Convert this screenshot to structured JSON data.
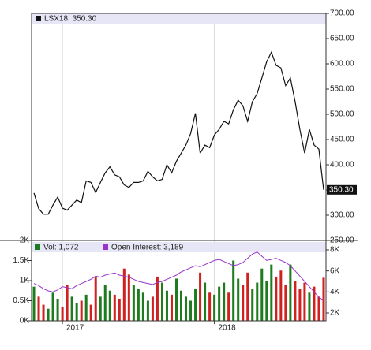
{
  "chart_data": [
    {
      "type": "line",
      "legend_label": "LSX18: 350.30",
      "last_label": "350.30",
      "categories": [
        null,
        null,
        null,
        null,
        null,
        null,
        "2017",
        null,
        null,
        null,
        null,
        null,
        null,
        null,
        null,
        null,
        null,
        null,
        null,
        null,
        null,
        null,
        null,
        null,
        null,
        null,
        null,
        null,
        null,
        null,
        null,
        null,
        null,
        null,
        null,
        null,
        null,
        null,
        "2018",
        null,
        null,
        null,
        null,
        null,
        null,
        null,
        null,
        null,
        null,
        null,
        null,
        null,
        null,
        null,
        null,
        null,
        null,
        null,
        null,
        null,
        null,
        null
      ],
      "series": [
        {
          "name": "LSX18",
          "color": "#111111",
          "values": [
            344,
            313,
            302,
            302,
            320,
            336,
            314,
            310,
            320,
            330,
            325,
            368,
            365,
            345,
            365,
            384,
            396,
            380,
            376,
            360,
            355,
            365,
            365,
            368,
            387,
            376,
            368,
            371,
            400,
            384,
            407,
            423,
            439,
            462,
            502,
            423,
            439,
            434,
            459,
            470,
            486,
            481,
            509,
            528,
            517,
            486,
            525,
            541,
            572,
            604,
            623,
            597,
            592,
            557,
            572,
            525,
            470,
            423,
            470,
            439,
            431,
            350.3
          ]
        }
      ],
      "ylim": [
        250,
        700
      ],
      "yticks": [
        {
          "value": 250,
          "label": "250.00"
        },
        {
          "value": 300,
          "label": "300.00"
        },
        {
          "value": 350,
          "label": "350.00"
        },
        {
          "value": 400,
          "label": "400.00"
        },
        {
          "value": 450,
          "label": "450.00"
        },
        {
          "value": 500,
          "label": "500.00"
        },
        {
          "value": 550,
          "label": "550.00"
        },
        {
          "value": 600,
          "label": "600.00"
        },
        {
          "value": 650,
          "label": "650.00"
        },
        {
          "value": 700,
          "label": "700.00"
        }
      ]
    },
    {
      "type": "bar",
      "series": [
        {
          "name": "Vol: 1,072",
          "up_color": "#1e7b1e",
          "down_color": "#d02020",
          "values": [
            850,
            600,
            400,
            300,
            700,
            550,
            350,
            900,
            600,
            450,
            500,
            650,
            400,
            1100,
            600,
            900,
            750,
            650,
            550,
            1300,
            1150,
            900,
            800,
            700,
            500,
            600,
            1100,
            950,
            750,
            650,
            1050,
            750,
            600,
            500,
            800,
            1200,
            950,
            700,
            650,
            850,
            950,
            700,
            1500,
            1050,
            900,
            1200,
            800,
            950,
            1300,
            1000,
            1400,
            1100,
            1250,
            900,
            1400,
            1000,
            800,
            950,
            700,
            850,
            600,
            1072
          ]
        },
        {
          "name": "Open Interest: 3,189",
          "type": "line",
          "axis": "y2",
          "color": "#9933cc",
          "values": [
            4800,
            4600,
            4300,
            4100,
            4000,
            4200,
            4500,
            4400,
            4300,
            4600,
            4800,
            5000,
            5200,
            5500,
            5400,
            5600,
            5700,
            5800,
            5600,
            5500,
            5400,
            5200,
            5000,
            4900,
            4800,
            4700,
            4900,
            5000,
            5200,
            5400,
            5600,
            5900,
            6100,
            6300,
            6500,
            6400,
            6600,
            6800,
            7000,
            7100,
            6900,
            6700,
            6500,
            6600,
            6800,
            7200,
            7600,
            7800,
            7400,
            7000,
            7100,
            7200,
            7000,
            6800,
            6500,
            6000,
            5500,
            5000,
            4500,
            4000,
            3500,
            3189
          ]
        }
      ],
      "ylim": [
        0,
        2000
      ],
      "yticks": [
        {
          "value": 0,
          "label": "0K"
        },
        {
          "value": 500,
          "label": "0.5K"
        },
        {
          "value": 1000,
          "label": "1K"
        },
        {
          "value": 1500,
          "label": "1.5K"
        },
        {
          "value": 2000,
          "label": "2K"
        }
      ],
      "y2lim": [
        1250,
        8900
      ],
      "y2ticks": [
        {
          "value": 2000,
          "label": "2K"
        },
        {
          "value": 4000,
          "label": "4K"
        },
        {
          "value": 6000,
          "label": "6K"
        },
        {
          "value": 8000,
          "label": "8K"
        }
      ]
    }
  ]
}
